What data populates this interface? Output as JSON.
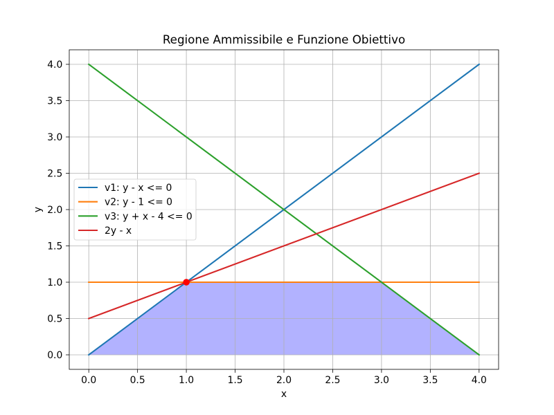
{
  "chart_data": {
    "type": "line",
    "title": "Regione Ammissibile e Funzione Obiettivo",
    "xlabel": "x",
    "ylabel": "y",
    "xlim": [
      -0.2,
      4.2
    ],
    "ylim": [
      -0.2,
      4.2
    ],
    "xtick_labels": [
      "0.0",
      "0.5",
      "1.0",
      "1.5",
      "2.0",
      "2.5",
      "3.0",
      "3.5",
      "4.0"
    ],
    "ytick_labels": [
      "0.0",
      "0.5",
      "1.0",
      "1.5",
      "2.0",
      "2.5",
      "3.0",
      "3.5",
      "4.0"
    ],
    "grid": true,
    "legend_position": "center left",
    "series": [
      {
        "name": "v1: y - x <= 0",
        "color": "#1f77b4",
        "x": [
          0,
          4
        ],
        "y": [
          0,
          4
        ]
      },
      {
        "name": "v2: y - 1 <= 0",
        "color": "#ff7f0e",
        "x": [
          0,
          4
        ],
        "y": [
          1,
          1
        ]
      },
      {
        "name": "v3: y + x - 4 <= 0",
        "color": "#2ca02c",
        "x": [
          0,
          4
        ],
        "y": [
          4,
          0
        ]
      },
      {
        "name": "2y - x",
        "color": "#d62728",
        "x": [
          0,
          4
        ],
        "y": [
          0.5,
          2.5
        ]
      }
    ],
    "fill_region": {
      "color": "#0000ff",
      "alpha": 0.3,
      "vertices": [
        [
          0,
          0
        ],
        [
          1,
          1
        ],
        [
          3,
          1
        ],
        [
          4,
          0
        ]
      ]
    },
    "points": [
      {
        "x": 1,
        "y": 1,
        "color": "#ff0000"
      }
    ]
  }
}
